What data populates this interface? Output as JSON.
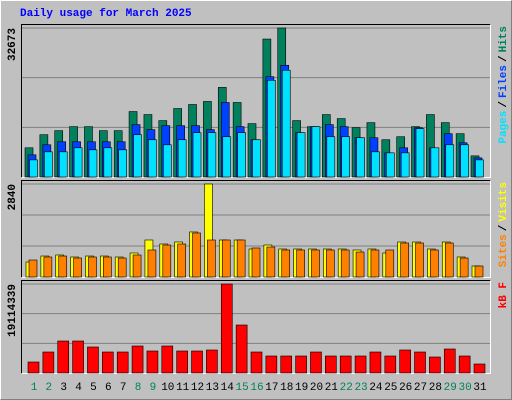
{
  "chart_data": [
    {
      "type": "bar",
      "title": "Daily usage for March 2025",
      "ylim": [
        0,
        32673
      ],
      "yticks": [
        32673
      ],
      "grid_divisions": 3,
      "legend_separator": "/",
      "series": [
        {
          "name": "Pages",
          "color": "#00e0ff",
          "values": [
            3754,
            5520,
            5520,
            6403,
            5962,
            6403,
            5962,
            9274,
            8170,
            7066,
            8170,
            9715,
            9715,
            8832,
            9715,
            8170,
            21197,
            23405,
            9715,
            11040,
            8832,
            8832,
            8611,
            5520,
            5299,
            5299,
            10598,
            6403,
            7066,
            7066,
            3754
          ]
        },
        {
          "name": "Files",
          "color": "#0040ff",
          "values": [
            4858,
            7066,
            7728,
            7728,
            7728,
            7728,
            7728,
            11482,
            10378,
            11261,
            11261,
            11261,
            10378,
            16339,
            11040,
            8170,
            22000,
            24500,
            9715,
            11040,
            11482,
            11040,
            8611,
            8611,
            5299,
            6403,
            10800,
            6403,
            9494,
            7507,
            4195
          ]
        },
        {
          "name": "Hits",
          "color": "#00805c",
          "values": [
            6403,
            9273,
            10157,
            11040,
            11040,
            10157,
            10157,
            14352,
            13690,
            12365,
            15014,
            15898,
            16560,
            19651,
            16339,
            11702,
            30250,
            32673,
            12365,
            11040,
            13690,
            12806,
            10819,
            11923,
            8170,
            8832,
            11040,
            13690,
            11923,
            9494,
            4637
          ]
        }
      ]
    },
    {
      "type": "bar",
      "ylim": [
        0,
        2840
      ],
      "yticks": [
        2840
      ],
      "grid_divisions": 3,
      "legend_separator": "/",
      "series": [
        {
          "name": "Sites",
          "color": "#ff8000",
          "values": [
            519,
            611,
            641,
            580,
            611,
            611,
            580,
            672,
            825,
            977,
            1008,
            1344,
            1130,
            1130,
            1130,
            886,
            916,
            825,
            825,
            825,
            825,
            825,
            763,
            825,
            825,
            1038,
            1038,
            825,
            1038,
            580,
            336
          ]
        },
        {
          "name": "Visits",
          "color": "#ffff00",
          "values": [
            458,
            641,
            672,
            611,
            641,
            641,
            611,
            733,
            1130,
            1008,
            1069,
            1375,
            2840,
            1130,
            1130,
            855,
            977,
            855,
            855,
            855,
            855,
            855,
            825,
            855,
            733,
            1069,
            1069,
            855,
            1069,
            611,
            336
          ]
        }
      ]
    },
    {
      "type": "bar",
      "ylim": [
        0,
        19114339
      ],
      "yticks": [
        19114339
      ],
      "grid_divisions": 3,
      "categories": [
        "1",
        "2",
        "3",
        "4",
        "5",
        "6",
        "7",
        "8",
        "9",
        "10",
        "11",
        "12",
        "13",
        "14",
        "15",
        "16",
        "17",
        "18",
        "19",
        "20",
        "21",
        "22",
        "23",
        "24",
        "25",
        "26",
        "27",
        "28",
        "29",
        "30",
        "31"
      ],
      "category_colors": [
        "#00805c",
        "#00805c",
        "#000000",
        "#000000",
        "#000000",
        "#000000",
        "#000000",
        "#00805c",
        "#00805c",
        "#000000",
        "#000000",
        "#000000",
        "#000000",
        "#000000",
        "#00805c",
        "#00805c",
        "#000000",
        "#000000",
        "#000000",
        "#000000",
        "#000000",
        "#00805c",
        "#00805c",
        "#000000",
        "#000000",
        "#000000",
        "#000000",
        "#000000",
        "#00805c",
        "#00805c",
        "#000000"
      ],
      "series": [
        {
          "name": "kB F",
          "color": "#ff0000",
          "values": [
            2362000,
            4510000,
            6872000,
            6872000,
            5584000,
            4510000,
            4510000,
            5799000,
            4725000,
            5799000,
            4725000,
            4725000,
            4940000,
            19114339,
            10309000,
            4510000,
            3651000,
            3651000,
            3651000,
            4510000,
            3651000,
            3651000,
            3651000,
            4510000,
            3651000,
            4940000,
            4510000,
            3436000,
            5154000,
            3651000,
            1933000
          ]
        }
      ]
    }
  ]
}
